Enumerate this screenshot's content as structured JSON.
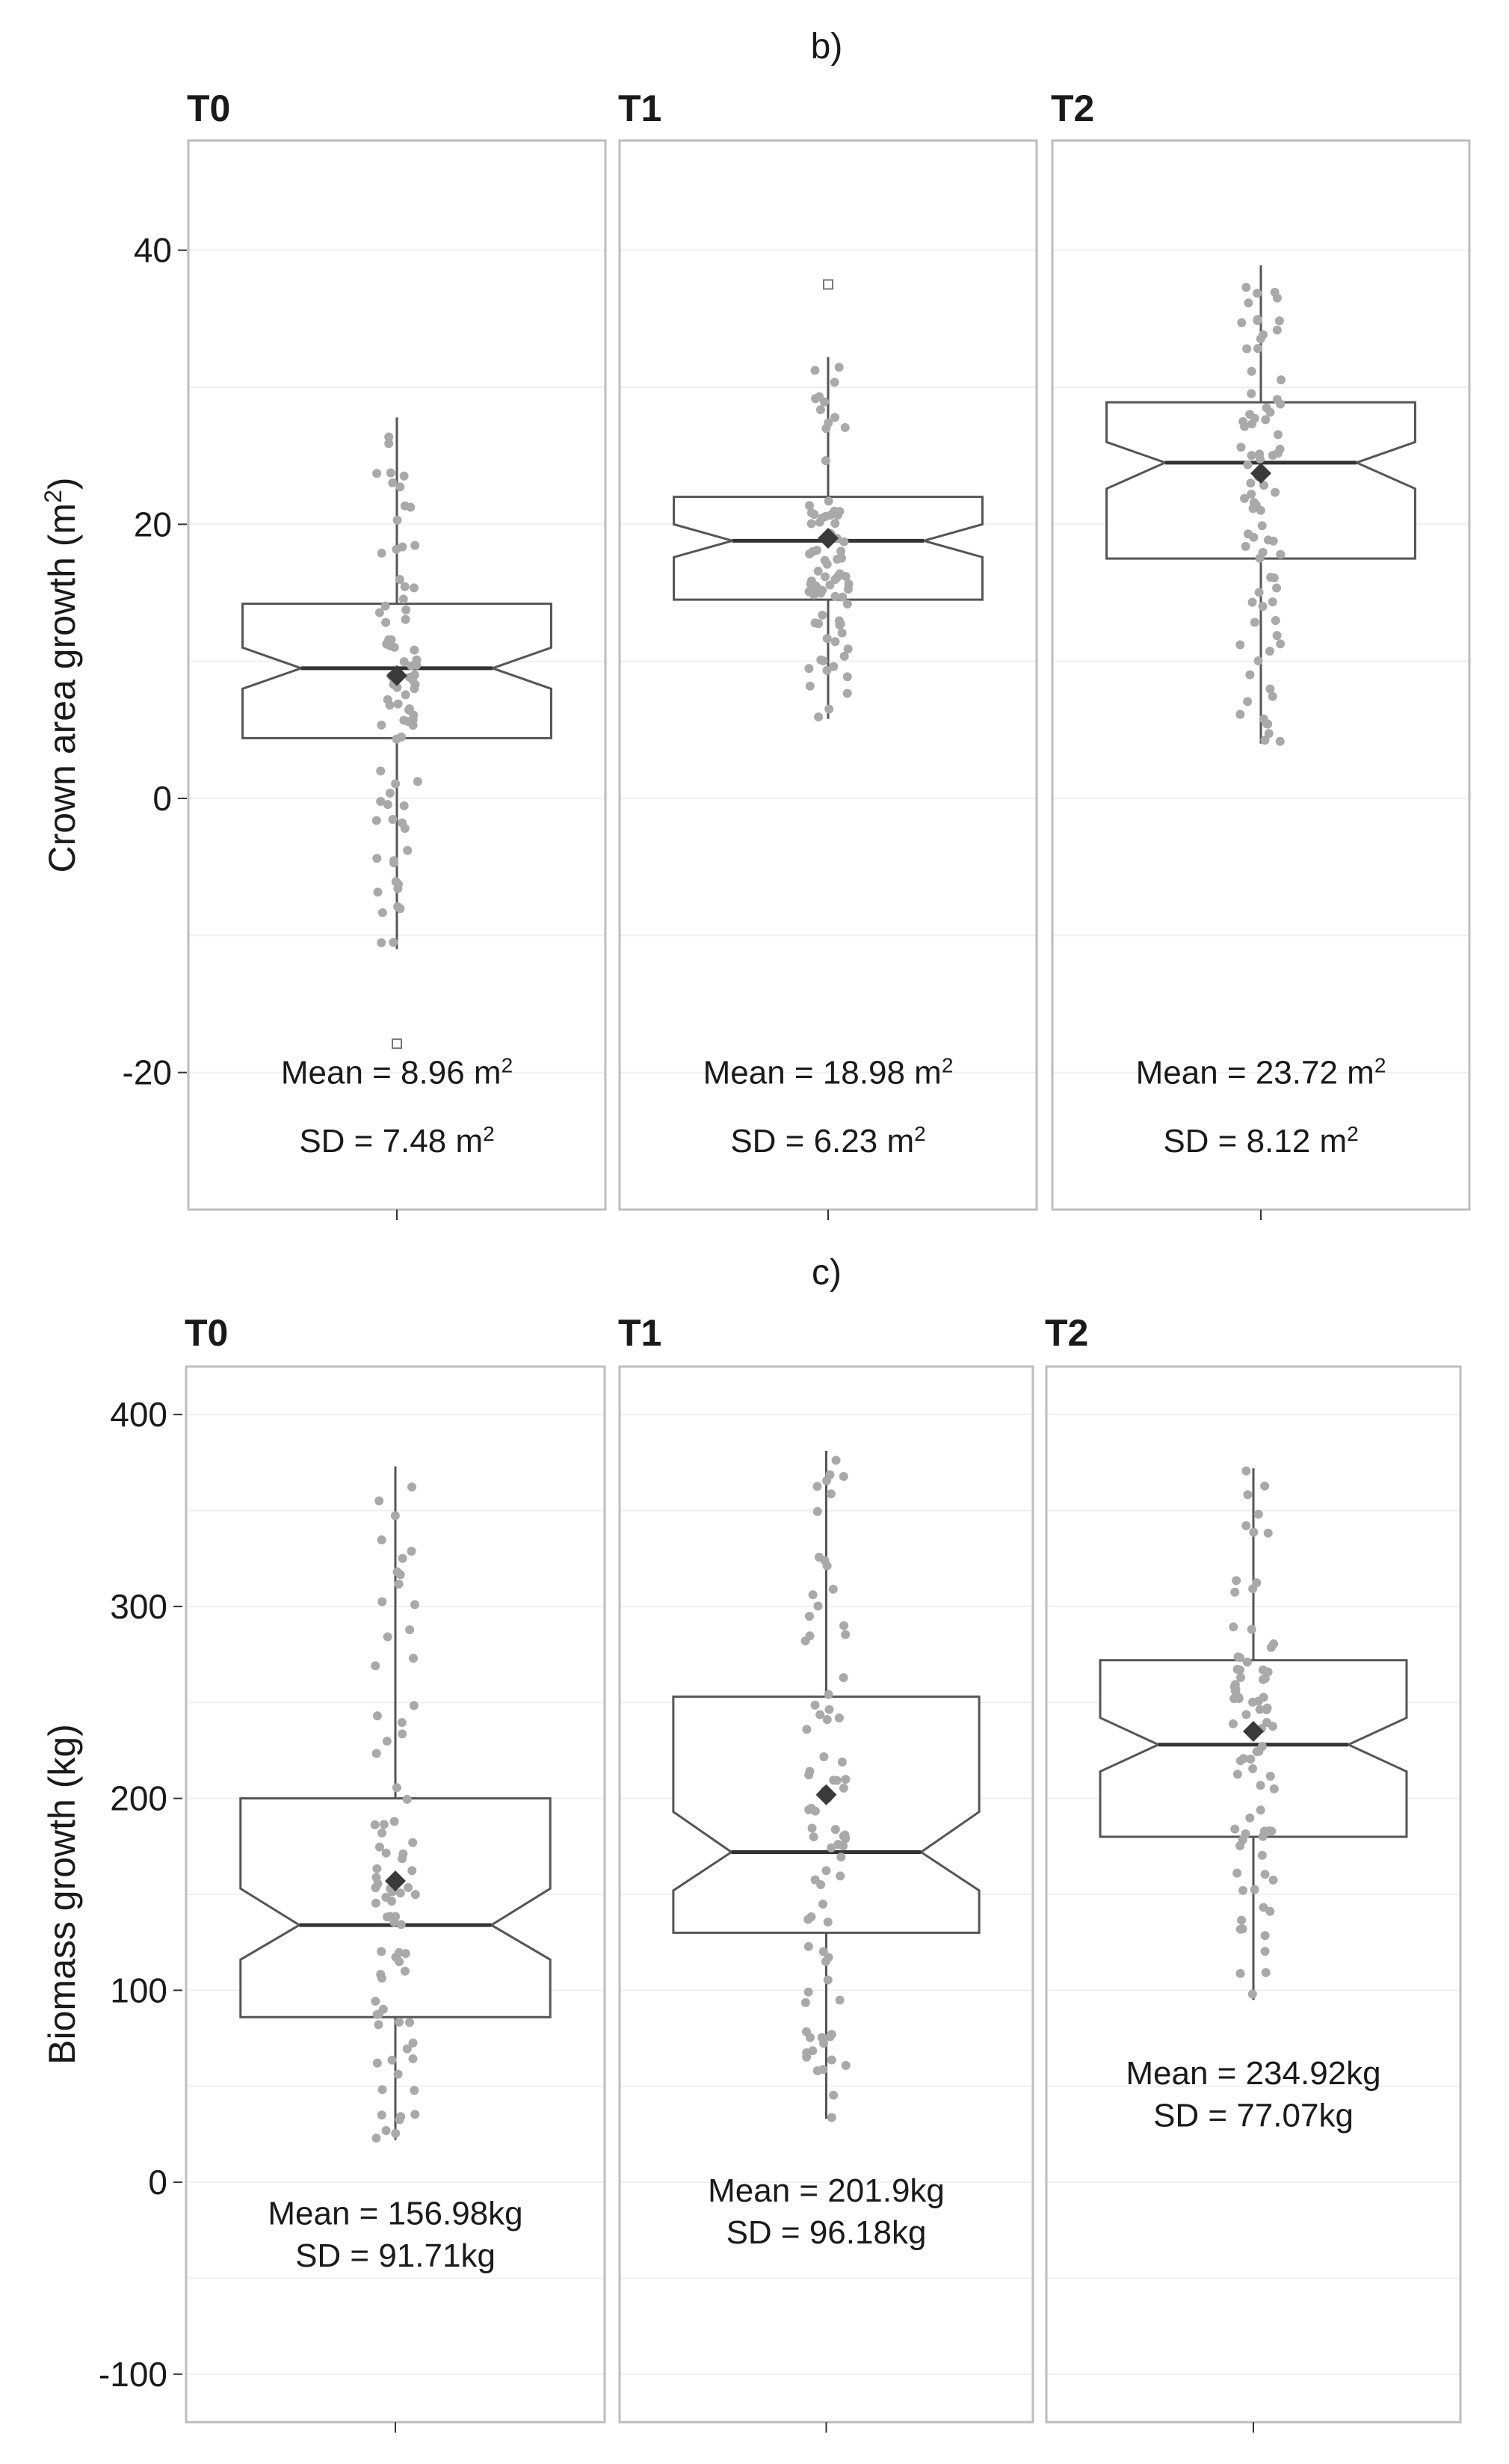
{
  "chart_data": [
    {
      "type": "boxplot",
      "label": "b)",
      "ylabel": "Crown area growth (m",
      "ylabel_sup": "2",
      "ylabel_close": ")",
      "ylim": [
        -30,
        48
      ],
      "yticks": [
        40,
        20,
        0,
        -20
      ],
      "ytick_labels": [
        "40",
        "20",
        "0",
        "-20"
      ],
      "unit": "m",
      "unit_sup": "2",
      "panels": [
        {
          "name": "T0",
          "box": {
            "q1": 4.4,
            "median": 9.5,
            "q3": 14.2,
            "notch_low": 8.0,
            "notch_high": 11.0,
            "whisker_low": -11,
            "whisker_high": 27.8
          },
          "mean_marker": 8.96,
          "outliers": [
            -17.9
          ],
          "mean_text": "Mean = 8.96 m",
          "sd_text": "SD = 7.48 m",
          "stat_values": [
            -20.8,
            -25.8
          ]
        },
        {
          "name": "T1",
          "box": {
            "q1": 14.5,
            "median": 18.8,
            "q3": 22.0,
            "notch_low": 17.6,
            "notch_high": 20.0,
            "whisker_low": 5.8,
            "whisker_high": 32.2
          },
          "mean_marker": 18.98,
          "outliers": [
            37.5
          ],
          "mean_text": "Mean = 18.98 m",
          "sd_text": "SD = 6.23 m",
          "stat_values": [
            -20.8,
            -25.8
          ]
        },
        {
          "name": "T2",
          "box": {
            "q1": 17.5,
            "median": 24.5,
            "q3": 28.9,
            "notch_low": 22.6,
            "notch_high": 26.0,
            "whisker_low": 4.0,
            "whisker_high": 38.9
          },
          "mean_marker": 23.72,
          "outliers": [],
          "mean_text": "Mean = 23.72 m",
          "sd_text": "SD = 8.12 m",
          "stat_values": [
            -20.8,
            -25.8
          ]
        }
      ]
    },
    {
      "type": "boxplot",
      "label": "c)",
      "ylabel": "Biomass growth (kg)",
      "ylim": [
        -125,
        425
      ],
      "yticks": [
        400,
        300,
        200,
        100,
        0,
        -100
      ],
      "ytick_labels": [
        "400",
        "300",
        "200",
        "100",
        "0",
        "-100"
      ],
      "panels": [
        {
          "name": "T0",
          "box": {
            "q1": 86,
            "median": 134,
            "q3": 200,
            "notch_low": 116,
            "notch_high": 153,
            "whisker_low": 22,
            "whisker_high": 373
          },
          "mean_marker": 156.98,
          "outliers": [],
          "mean_text": "Mean = 156.98kg",
          "sd_text": "SD = 91.71kg",
          "stat_values": [
            -22,
            -44
          ]
        },
        {
          "name": "T1",
          "box": {
            "q1": 130,
            "median": 172,
            "q3": 253,
            "notch_low": 152,
            "notch_high": 193,
            "whisker_low": 33,
            "whisker_high": 381
          },
          "mean_marker": 201.9,
          "outliers": [],
          "mean_text": "Mean = 201.9kg",
          "sd_text": "SD = 96.18kg",
          "stat_values": [
            -10,
            -32
          ]
        },
        {
          "name": "T2",
          "box": {
            "q1": 180,
            "median": 228,
            "q3": 272,
            "notch_low": 214,
            "notch_high": 242,
            "whisker_low": 95,
            "whisker_high": 372
          },
          "mean_marker": 234.92,
          "outliers": [],
          "mean_text": "Mean = 234.92kg",
          "sd_text": "SD = 77.07kg",
          "stat_values": [
            51,
            29
          ]
        }
      ]
    }
  ],
  "colors": {
    "panel_border": "#bdbdbd",
    "grid": "#efefef",
    "box_stroke": "#555555",
    "points": "#a9a9a9",
    "mean_marker": "#3a3a3a",
    "text": "#1a1a1a"
  }
}
